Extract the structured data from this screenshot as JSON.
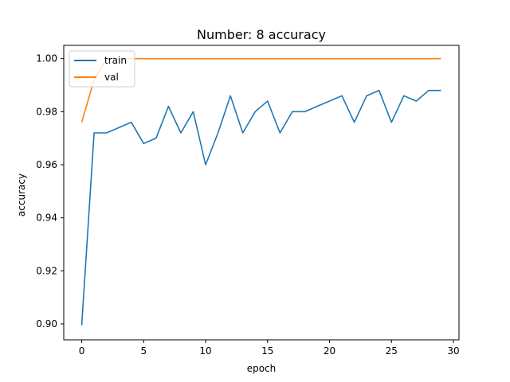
{
  "chart_data": {
    "type": "line",
    "title": "Number: 8 accuracy",
    "xlabel": "epoch",
    "ylabel": "accuracy",
    "xlim": [
      -1.45,
      30.45
    ],
    "ylim": [
      0.894,
      1.005
    ],
    "xticks": [
      0,
      5,
      10,
      15,
      20,
      25,
      30
    ],
    "yticks": [
      0.9,
      0.92,
      0.94,
      0.96,
      0.98,
      1.0
    ],
    "xtick_labels": [
      "0",
      "5",
      "10",
      "15",
      "20",
      "25",
      "30"
    ],
    "ytick_labels": [
      "0.90",
      "0.92",
      "0.94",
      "0.96",
      "0.98",
      "1.00"
    ],
    "grid": false,
    "legend_position": "upper-left",
    "x": [
      0,
      1,
      2,
      3,
      4,
      5,
      6,
      7,
      8,
      9,
      10,
      11,
      12,
      13,
      14,
      15,
      16,
      17,
      18,
      19,
      20,
      21,
      22,
      23,
      24,
      25,
      26,
      27,
      28,
      29
    ],
    "series": [
      {
        "name": "train",
        "color": "#1f77b4",
        "values": [
          0.8995,
          0.972,
          0.972,
          0.974,
          0.976,
          0.968,
          0.97,
          0.982,
          0.972,
          0.98,
          0.96,
          0.972,
          0.986,
          0.972,
          0.98,
          0.984,
          0.972,
          0.98,
          0.98,
          0.982,
          0.984,
          0.986,
          0.976,
          0.986,
          0.988,
          0.976,
          0.986,
          0.984,
          0.988,
          0.988
        ]
      },
      {
        "name": "val",
        "color": "#ff7f0e",
        "values": [
          0.976,
          0.992,
          1.0,
          1.0,
          1.0,
          1.0,
          1.0,
          1.0,
          1.0,
          1.0,
          1.0,
          1.0,
          1.0,
          1.0,
          1.0,
          1.0,
          1.0,
          1.0,
          1.0,
          1.0,
          1.0,
          1.0,
          1.0,
          1.0,
          1.0,
          1.0,
          1.0,
          1.0,
          1.0,
          1.0
        ]
      }
    ]
  }
}
